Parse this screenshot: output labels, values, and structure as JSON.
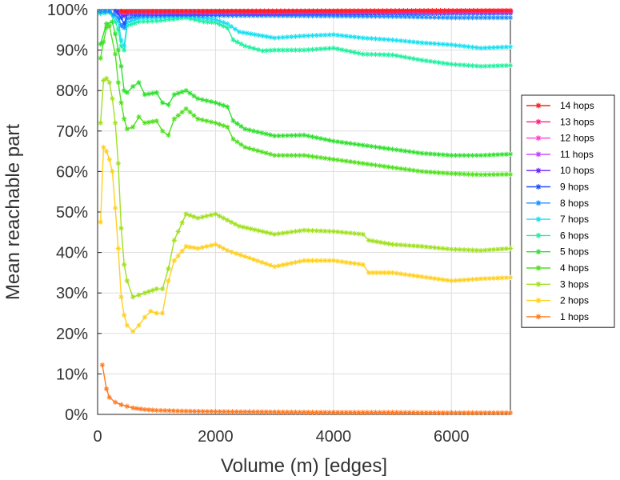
{
  "chart_data": {
    "type": "line",
    "title": "",
    "xlabel": "Volume (m) [edges]",
    "ylabel": "Mean reachable part",
    "xlim": [
      0,
      7000
    ],
    "ylim": [
      0,
      100
    ],
    "x_ticks": [
      0,
      2000,
      4000,
      6000
    ],
    "x_tick_labels": [
      "0",
      "2000",
      "4000",
      "6000"
    ],
    "y_ticks": [
      0,
      10,
      20,
      30,
      40,
      50,
      60,
      70,
      80,
      90,
      100
    ],
    "y_tick_labels": [
      "0%",
      "10%",
      "20%",
      "30%",
      "40%",
      "50%",
      "60%",
      "70%",
      "80%",
      "90%",
      "100%"
    ],
    "grid": true,
    "legend_position": "right",
    "series": [
      {
        "name": "14 hops",
        "color": "#ff2020",
        "points": [
          [
            400,
            99.6
          ],
          [
            450,
            99.5
          ],
          [
            500,
            99.5
          ],
          [
            2000,
            99.6
          ],
          [
            4000,
            99.7
          ],
          [
            7000,
            99.8
          ]
        ]
      },
      {
        "name": "13 hops",
        "color": "#ff2080",
        "points": [
          [
            400,
            99.5
          ],
          [
            450,
            99.4
          ],
          [
            500,
            99.5
          ],
          [
            2000,
            99.5
          ],
          [
            4000,
            99.6
          ],
          [
            7000,
            99.7
          ]
        ]
      },
      {
        "name": "12 hops",
        "color": "#ff40d0",
        "points": [
          [
            400,
            99.4
          ],
          [
            450,
            99.3
          ],
          [
            500,
            99.4
          ],
          [
            2000,
            99.4
          ],
          [
            4000,
            99.5
          ],
          [
            7000,
            99.6
          ]
        ]
      },
      {
        "name": "11 hops",
        "color": "#c040ff",
        "points": [
          [
            400,
            99.3
          ],
          [
            450,
            99.2
          ],
          [
            500,
            99.3
          ],
          [
            2000,
            99.3
          ],
          [
            4000,
            99.4
          ],
          [
            7000,
            99.5
          ]
        ]
      },
      {
        "name": "10 hops",
        "color": "#6a20ff",
        "points": [
          [
            350,
            99.5
          ],
          [
            400,
            99.0
          ],
          [
            450,
            98.5
          ],
          [
            500,
            99.2
          ],
          [
            2000,
            99.2
          ],
          [
            4000,
            99.3
          ],
          [
            7000,
            99.4
          ]
        ]
      },
      {
        "name": "9 hops",
        "color": "#2050ff",
        "points": [
          [
            300,
            99.6
          ],
          [
            350,
            99.0
          ],
          [
            400,
            98.0
          ],
          [
            450,
            96.5
          ],
          [
            500,
            98.8
          ],
          [
            2000,
            98.9
          ],
          [
            4000,
            99.0
          ],
          [
            7000,
            99.1
          ]
        ]
      },
      {
        "name": "8 hops",
        "color": "#1e90ff",
        "points": [
          [
            50,
            99.5
          ],
          [
            200,
            99.6
          ],
          [
            350,
            98.0
          ],
          [
            400,
            96.0
          ],
          [
            450,
            95.5
          ],
          [
            500,
            97.8
          ],
          [
            700,
            98.4
          ],
          [
            1500,
            98.6
          ],
          [
            2000,
            98.5
          ],
          [
            3000,
            98.5
          ],
          [
            4000,
            98.4
          ],
          [
            5000,
            98.3
          ],
          [
            6000,
            98.0
          ],
          [
            7000,
            98.0
          ]
        ]
      },
      {
        "name": "7 hops",
        "color": "#18e0f0",
        "points": [
          [
            50,
            99.3
          ],
          [
            200,
            99.5
          ],
          [
            350,
            97.0
          ],
          [
            400,
            92.5
          ],
          [
            450,
            91.0
          ],
          [
            500,
            96.8
          ],
          [
            700,
            97.8
          ],
          [
            1500,
            98.5
          ],
          [
            2000,
            97.5
          ],
          [
            2200,
            96.5
          ],
          [
            2400,
            94.5
          ],
          [
            3000,
            93.0
          ],
          [
            3500,
            93.5
          ],
          [
            4000,
            93.8
          ],
          [
            4500,
            93.0
          ],
          [
            5000,
            92.5
          ],
          [
            5500,
            91.8
          ],
          [
            6000,
            91.3
          ],
          [
            6500,
            90.5
          ],
          [
            7000,
            90.8
          ]
        ]
      },
      {
        "name": "6 hops",
        "color": "#20f0a0",
        "points": [
          [
            50,
            99.0
          ],
          [
            200,
            99.3
          ],
          [
            300,
            97.0
          ],
          [
            350,
            95.0
          ],
          [
            400,
            91.0
          ],
          [
            450,
            90.0
          ],
          [
            500,
            96.0
          ],
          [
            700,
            97.0
          ],
          [
            1000,
            97.2
          ],
          [
            1500,
            98.0
          ],
          [
            1800,
            97.0
          ],
          [
            2000,
            96.8
          ],
          [
            2200,
            95.5
          ],
          [
            2300,
            92.5
          ],
          [
            2500,
            91.0
          ],
          [
            2800,
            89.8
          ],
          [
            3000,
            90.0
          ],
          [
            3500,
            90.0
          ],
          [
            4000,
            90.5
          ],
          [
            4500,
            89.0
          ],
          [
            5000,
            88.8
          ],
          [
            5500,
            87.5
          ],
          [
            6000,
            86.5
          ],
          [
            6500,
            86.0
          ],
          [
            7000,
            86.2
          ]
        ]
      },
      {
        "name": "5 hops",
        "color": "#30e030",
        "points": [
          [
            50,
            91.5
          ],
          [
            150,
            96.5
          ],
          [
            250,
            97.0
          ],
          [
            300,
            94.0
          ],
          [
            350,
            90.0
          ],
          [
            400,
            86.0
          ],
          [
            450,
            80.0
          ],
          [
            500,
            79.5
          ],
          [
            600,
            81.0
          ],
          [
            700,
            82.0
          ],
          [
            800,
            79.0
          ],
          [
            1000,
            79.5
          ],
          [
            1100,
            77.0
          ],
          [
            1200,
            76.5
          ],
          [
            1300,
            79.0
          ],
          [
            1500,
            80.0
          ],
          [
            1700,
            78.0
          ],
          [
            2000,
            77.0
          ],
          [
            2200,
            76.0
          ],
          [
            2300,
            72.5
          ],
          [
            2500,
            70.5
          ],
          [
            3000,
            68.8
          ],
          [
            3500,
            69.0
          ],
          [
            4000,
            67.5
          ],
          [
            4500,
            66.5
          ],
          [
            5000,
            65.5
          ],
          [
            5500,
            64.5
          ],
          [
            6000,
            64.0
          ],
          [
            6500,
            64.0
          ],
          [
            7000,
            64.3
          ]
        ]
      },
      {
        "name": "4 hops",
        "color": "#50e020",
        "points": [
          [
            50,
            88.0
          ],
          [
            100,
            92.0
          ],
          [
            150,
            95.5
          ],
          [
            200,
            96.0
          ],
          [
            300,
            89.0
          ],
          [
            350,
            82.0
          ],
          [
            400,
            77.0
          ],
          [
            450,
            73.0
          ],
          [
            500,
            70.5
          ],
          [
            600,
            71.0
          ],
          [
            700,
            73.5
          ],
          [
            800,
            72.0
          ],
          [
            1000,
            72.5
          ],
          [
            1100,
            70.0
          ],
          [
            1200,
            69.0
          ],
          [
            1300,
            73.0
          ],
          [
            1500,
            75.5
          ],
          [
            1700,
            73.0
          ],
          [
            2000,
            72.0
          ],
          [
            2200,
            71.0
          ],
          [
            2300,
            68.0
          ],
          [
            2500,
            66.0
          ],
          [
            3000,
            64.0
          ],
          [
            3500,
            64.0
          ],
          [
            4000,
            63.0
          ],
          [
            4500,
            62.0
          ],
          [
            5000,
            61.0
          ],
          [
            5500,
            60.0
          ],
          [
            6000,
            59.5
          ],
          [
            6500,
            59.2
          ],
          [
            7000,
            59.3
          ]
        ]
      },
      {
        "name": "3 hops",
        "color": "#a0e020",
        "points": [
          [
            50,
            72.0
          ],
          [
            100,
            82.5
          ],
          [
            150,
            83.0
          ],
          [
            200,
            82.0
          ],
          [
            250,
            78.0
          ],
          [
            300,
            72.0
          ],
          [
            350,
            62.0
          ],
          [
            400,
            46.0
          ],
          [
            450,
            37.0
          ],
          [
            500,
            33.0
          ],
          [
            600,
            29.0
          ],
          [
            700,
            29.5
          ],
          [
            800,
            30.0
          ],
          [
            1000,
            31.0
          ],
          [
            1100,
            31.0
          ],
          [
            1200,
            36.0
          ],
          [
            1300,
            43.0
          ],
          [
            1500,
            49.5
          ],
          [
            1700,
            48.5
          ],
          [
            2000,
            49.5
          ],
          [
            2200,
            48.0
          ],
          [
            2400,
            46.5
          ],
          [
            3000,
            44.5
          ],
          [
            3500,
            45.5
          ],
          [
            4000,
            45.2
          ],
          [
            4500,
            44.5
          ],
          [
            4600,
            43.0
          ],
          [
            5000,
            42.0
          ],
          [
            5500,
            41.5
          ],
          [
            6000,
            40.8
          ],
          [
            6500,
            40.5
          ],
          [
            7000,
            41.0
          ]
        ]
      },
      {
        "name": "2 hops",
        "color": "#ffd020",
        "points": [
          [
            50,
            47.5
          ],
          [
            100,
            66.0
          ],
          [
            150,
            65.0
          ],
          [
            200,
            63.0
          ],
          [
            250,
            60.0
          ],
          [
            300,
            51.0
          ],
          [
            350,
            41.0
          ],
          [
            400,
            29.0
          ],
          [
            450,
            24.5
          ],
          [
            500,
            22.0
          ],
          [
            600,
            20.5
          ],
          [
            700,
            22.0
          ],
          [
            800,
            24.0
          ],
          [
            900,
            25.5
          ],
          [
            1000,
            25.0
          ],
          [
            1100,
            25.0
          ],
          [
            1200,
            33.0
          ],
          [
            1300,
            38.0
          ],
          [
            1500,
            41.5
          ],
          [
            1700,
            41.0
          ],
          [
            2000,
            42.0
          ],
          [
            2200,
            40.5
          ],
          [
            2500,
            39.0
          ],
          [
            3000,
            36.5
          ],
          [
            3500,
            38.0
          ],
          [
            4000,
            38.0
          ],
          [
            4500,
            37.0
          ],
          [
            4600,
            35.0
          ],
          [
            5000,
            35.0
          ],
          [
            5500,
            34.0
          ],
          [
            6000,
            33.0
          ],
          [
            6500,
            33.5
          ],
          [
            7000,
            33.8
          ]
        ]
      },
      {
        "name": "1 hops",
        "color": "#ff7a20",
        "points": [
          [
            80,
            12.2
          ],
          [
            150,
            6.3
          ],
          [
            200,
            4.2
          ],
          [
            300,
            3.0
          ],
          [
            400,
            2.4
          ],
          [
            500,
            2.0
          ],
          [
            600,
            1.6
          ],
          [
            800,
            1.2
          ],
          [
            1000,
            1.0
          ],
          [
            1500,
            0.8
          ],
          [
            2000,
            0.7
          ],
          [
            3000,
            0.6
          ],
          [
            4000,
            0.5
          ],
          [
            5000,
            0.5
          ],
          [
            6000,
            0.4
          ],
          [
            7000,
            0.4
          ]
        ]
      }
    ]
  }
}
